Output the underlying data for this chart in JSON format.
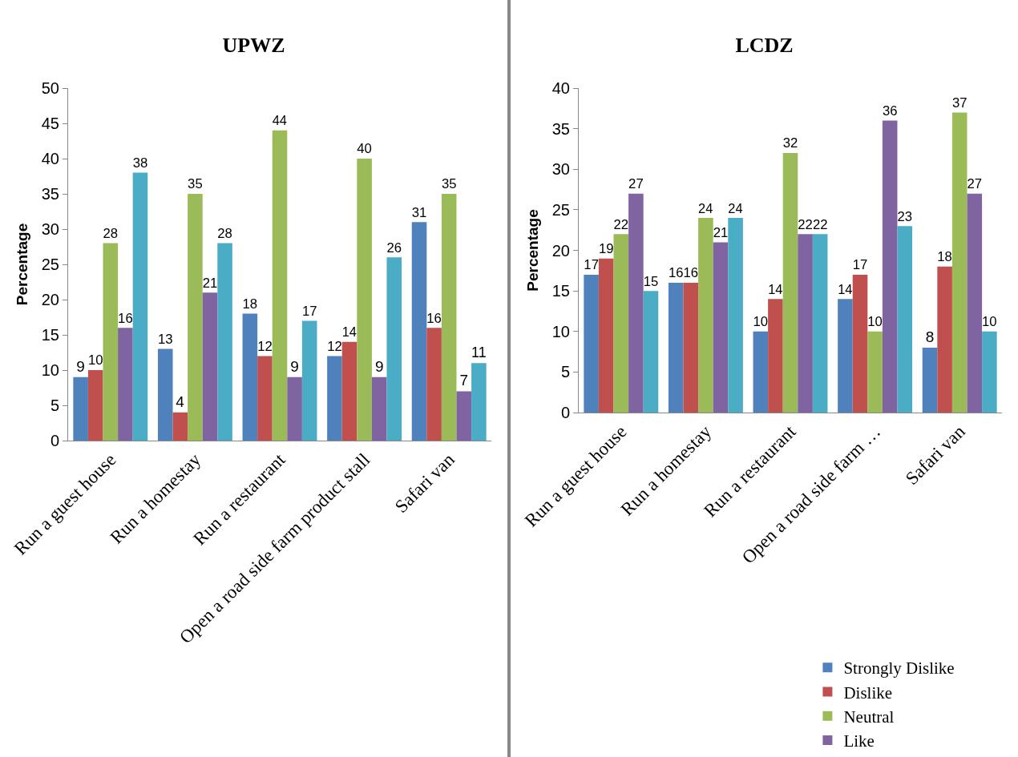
{
  "chart_data": [
    {
      "type": "bar",
      "title": "UPWZ",
      "ylabel": "Percentage",
      "categories": [
        "Run a guest house",
        "Run a homestay",
        "Run a restaurant",
        "Open a road side farm product stall",
        "Safari van"
      ],
      "series": [
        {
          "color": "#4f81bd",
          "values": [
            9,
            13,
            18,
            12,
            31
          ]
        },
        {
          "color": "#c0504d",
          "values": [
            10,
            4,
            12,
            14,
            16
          ]
        },
        {
          "color": "#9bbb59",
          "values": [
            28,
            35,
            44,
            40,
            35
          ]
        },
        {
          "color": "#8064a2",
          "values": [
            16,
            21,
            9,
            9,
            7
          ]
        },
        {
          "color": "#4bacc6",
          "values": [
            38,
            28,
            17,
            26,
            11
          ]
        }
      ],
      "ylim": [
        0,
        50
      ],
      "yticks": [
        0,
        5,
        10,
        15,
        20,
        25,
        30,
        35,
        40,
        45,
        50
      ],
      "grid": false,
      "legend": false,
      "data_labels": true
    },
    {
      "type": "bar",
      "title": "LCDZ",
      "ylabel": "Percentage",
      "categories": [
        "Run a guest house",
        "Run a homestay",
        "Run a restaurant",
        "Open a road side farm …",
        "Safari van"
      ],
      "series": [
        {
          "name": "Strongly Dislike",
          "color": "#4f81bd",
          "values": [
            17,
            16,
            10,
            14,
            8
          ]
        },
        {
          "name": "Dislike",
          "color": "#c0504d",
          "values": [
            19,
            16,
            14,
            17,
            18
          ]
        },
        {
          "name": "Neutral",
          "color": "#9bbb59",
          "values": [
            22,
            24,
            32,
            10,
            37
          ]
        },
        {
          "name": "Like",
          "color": "#8064a2",
          "values": [
            27,
            21,
            22,
            36,
            27
          ]
        },
        {
          "color": "#4bacc6",
          "values": [
            15,
            24,
            22,
            23,
            10
          ]
        }
      ],
      "ylim": [
        0,
        40
      ],
      "yticks": [
        0,
        5,
        10,
        15,
        20,
        25,
        30,
        35,
        40
      ],
      "grid": false,
      "legend": "bottom",
      "data_labels": true
    }
  ]
}
